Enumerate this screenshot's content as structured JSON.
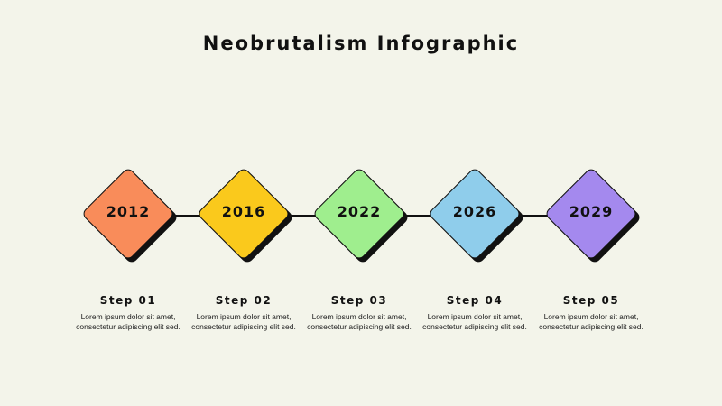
{
  "title": "Neobrutalism Infographic",
  "steps": [
    {
      "year": "2012",
      "label": "Step 01",
      "desc": "Lorem ipsum dolor sit amet, consectetur adipiscing elit sed.",
      "color": "#f98c5a"
    },
    {
      "year": "2016",
      "label": "Step 02",
      "desc": "Lorem ipsum dolor sit amet, consectetur adipiscing elit sed.",
      "color": "#fac91c"
    },
    {
      "year": "2022",
      "label": "Step 03",
      "desc": "Lorem ipsum dolor sit amet, consectetur adipiscing elit sed.",
      "color": "#9fee8e"
    },
    {
      "year": "2026",
      "label": "Step 04",
      "desc": "Lorem ipsum dolor sit amet, consectetur adipiscing elit sed.",
      "color": "#8fcdeb"
    },
    {
      "year": "2029",
      "label": "Step 05",
      "desc": "Lorem ipsum dolor sit amet, consectetur adipiscing elit sed.",
      "color": "#a489ee"
    }
  ]
}
